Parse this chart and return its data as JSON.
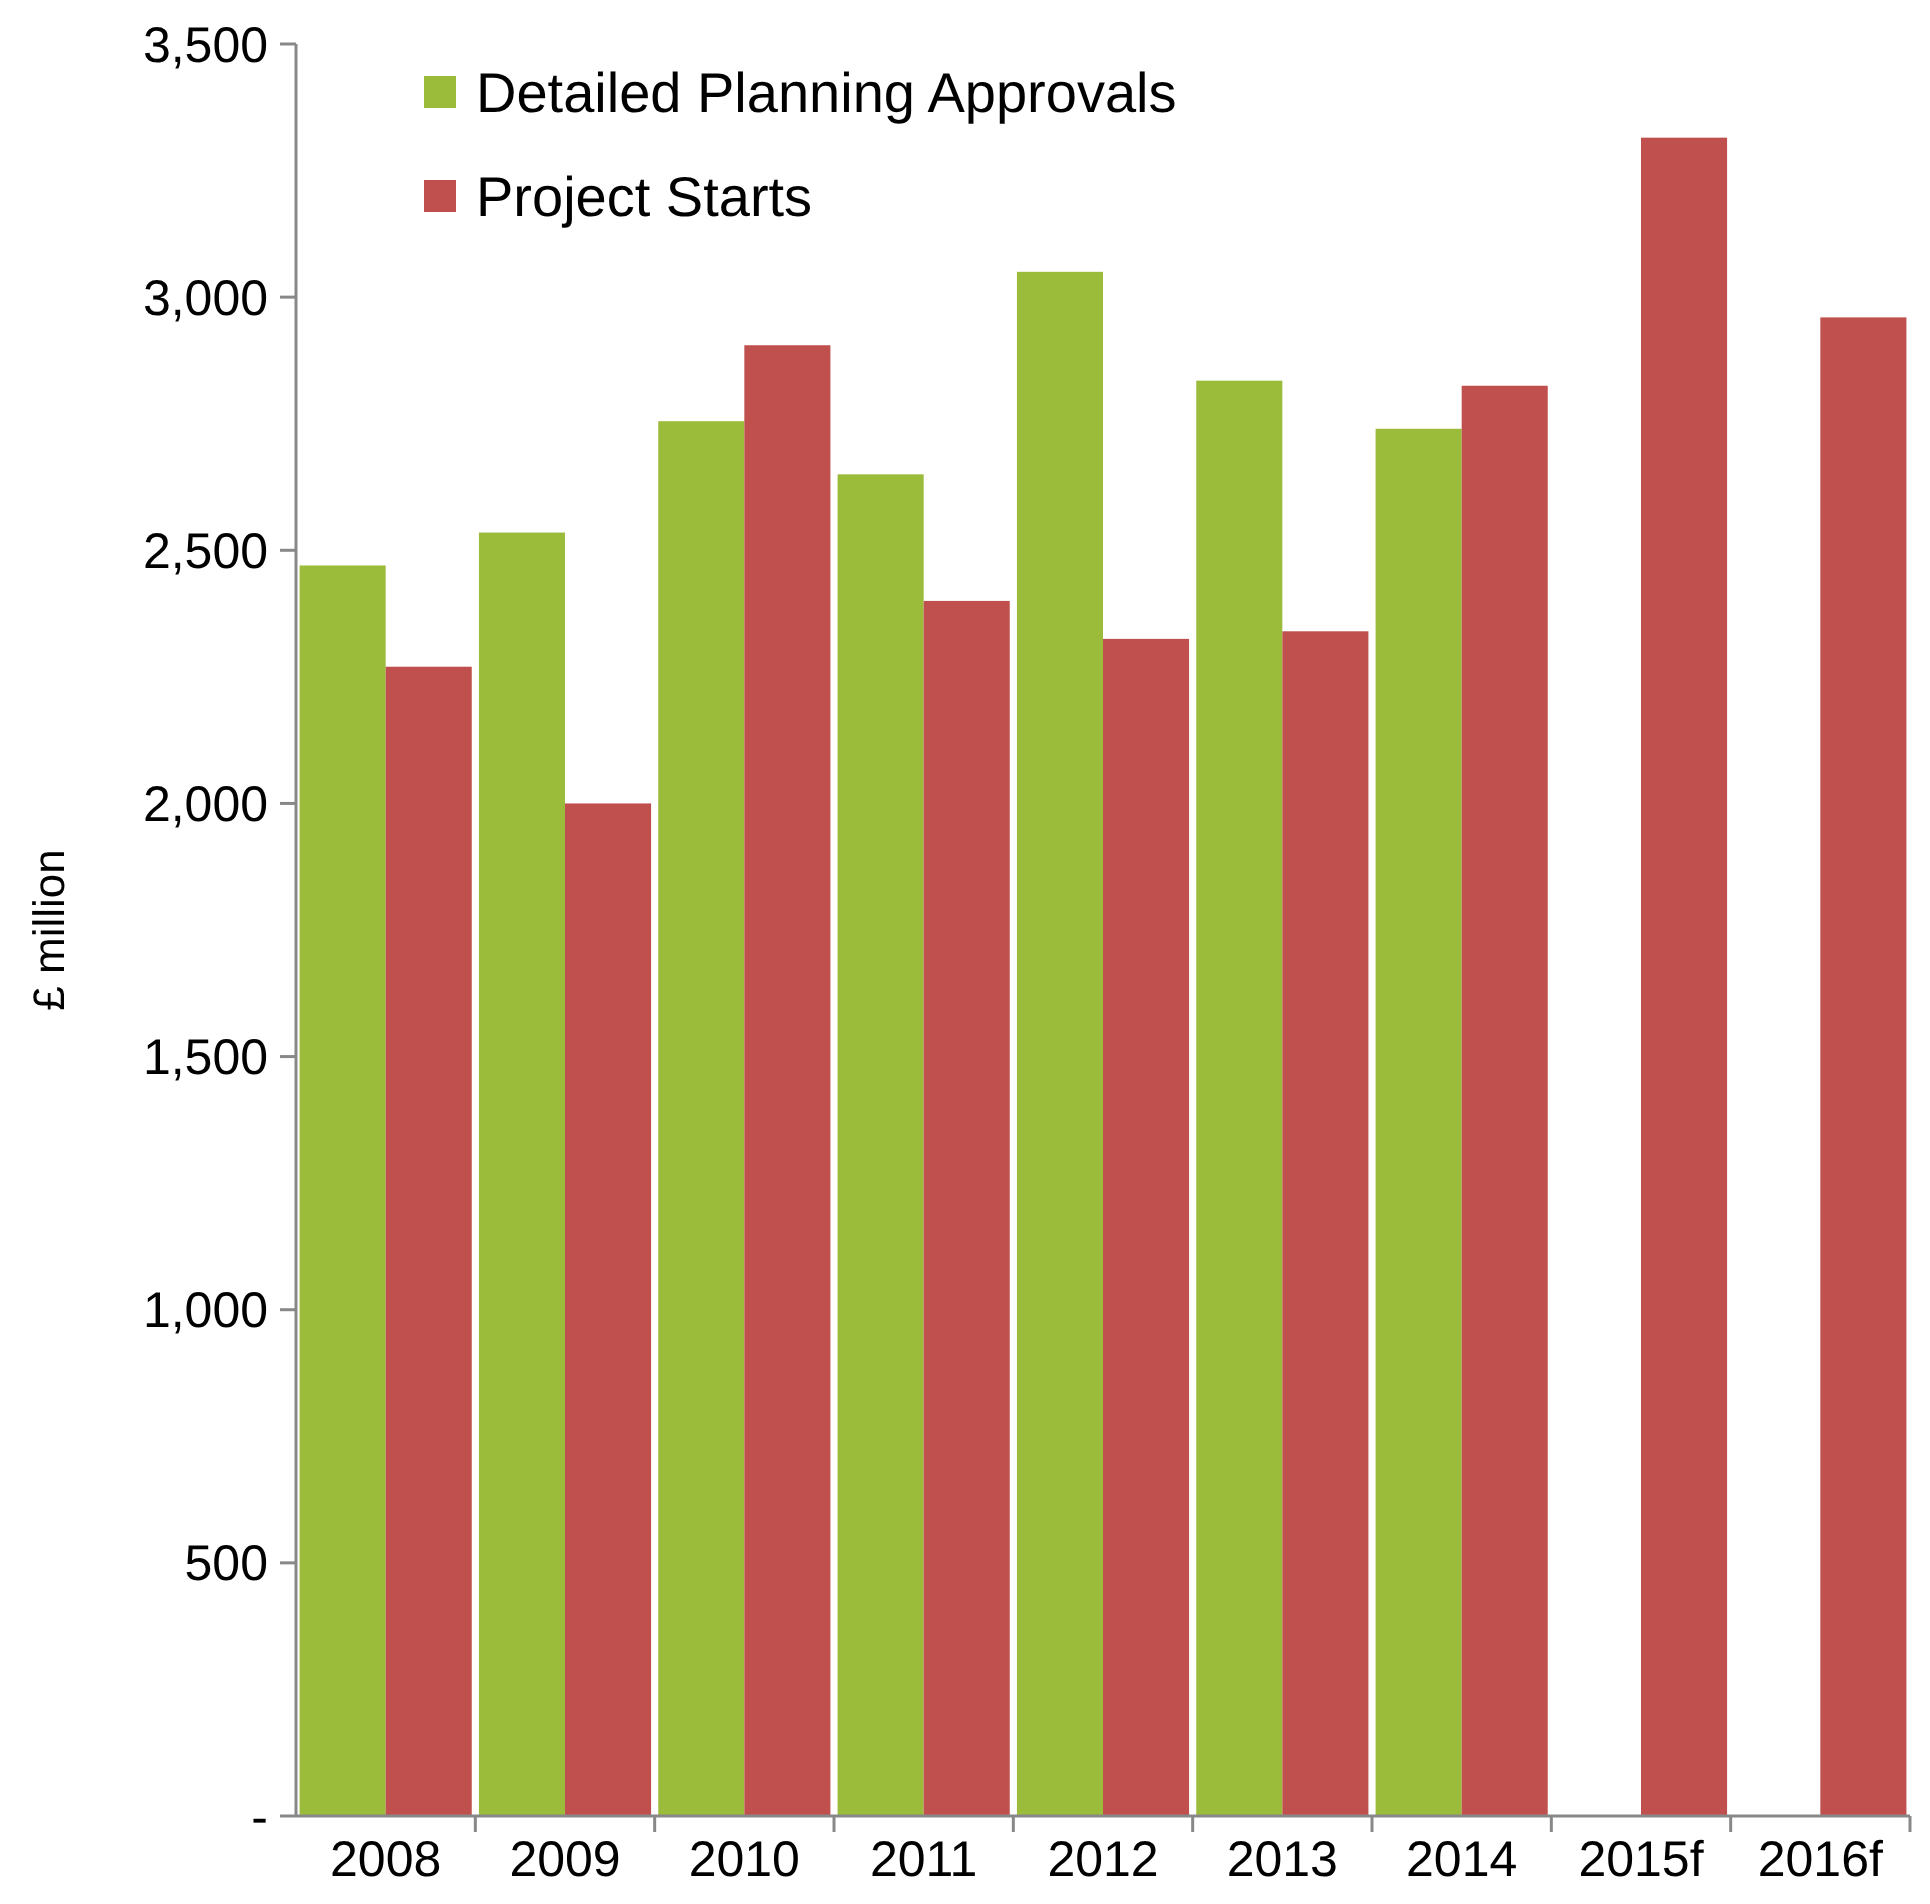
{
  "chart_data": {
    "type": "bar",
    "ylabel": "£ million",
    "categories": [
      "2008",
      "2009",
      "2010",
      "2011",
      "2012",
      "2013",
      "2014",
      "2015f",
      "2016f"
    ],
    "series": [
      {
        "name": "Detailed Planning Approvals",
        "color": "#9bbb3b",
        "values": [
          2470,
          2535,
          2755,
          2650,
          3050,
          2835,
          2740,
          null,
          null
        ]
      },
      {
        "name": "Project Starts",
        "color": "#c0504d",
        "values": [
          2270,
          2000,
          2905,
          2400,
          2325,
          2340,
          2825,
          3315,
          2960
        ]
      }
    ],
    "ylim": [
      0,
      3500
    ],
    "yticks": [
      {
        "value": 0,
        "label": "-"
      },
      {
        "value": 500,
        "label": "500"
      },
      {
        "value": 1000,
        "label": "1,000"
      },
      {
        "value": 1500,
        "label": "1,500"
      },
      {
        "value": 2000,
        "label": "2,000"
      },
      {
        "value": 2500,
        "label": "2,500"
      },
      {
        "value": 3000,
        "label": "3,000"
      },
      {
        "value": 3500,
        "label": "3,500"
      }
    ],
    "grid": false,
    "legend": "top left"
  }
}
